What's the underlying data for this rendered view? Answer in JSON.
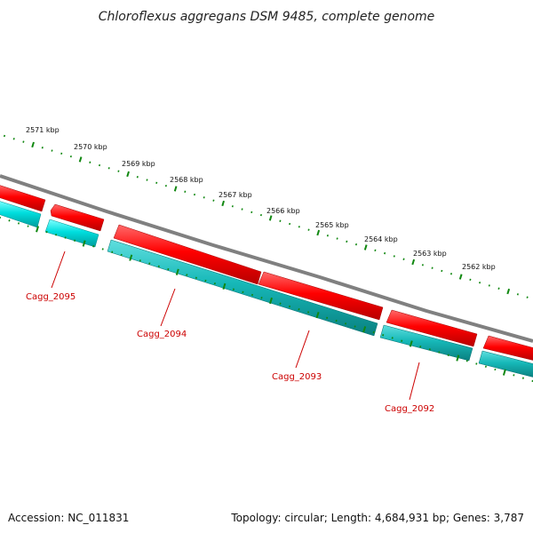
{
  "title": "Chloroflexus aggregans DSM 9485, complete genome",
  "footer": {
    "accession": "Accession: NC_011831",
    "summary": "Topology: circular; Length: 4,684,931 bp; Genes: 3,787"
  },
  "scale_labels": [
    "2571 kbp",
    "2570 kbp",
    "2569 kbp",
    "2568 kbp",
    "2567 kbp",
    "2566 kbp",
    "2565 kbp",
    "2564 kbp",
    "2563 kbp",
    "2562 kbp"
  ],
  "genes": [
    {
      "label": "Cagg_2095"
    },
    {
      "label": "Cagg_2094"
    },
    {
      "label": "Cagg_2093"
    },
    {
      "label": "Cagg_2092"
    }
  ],
  "colors": {
    "backbone": "#888888",
    "forward_feature": "#ee0000",
    "reverse_feature": "#00c8c8",
    "reverse_feature_light": "#22eeee",
    "ticks": "#118811",
    "gene_label": "#cc0000"
  }
}
